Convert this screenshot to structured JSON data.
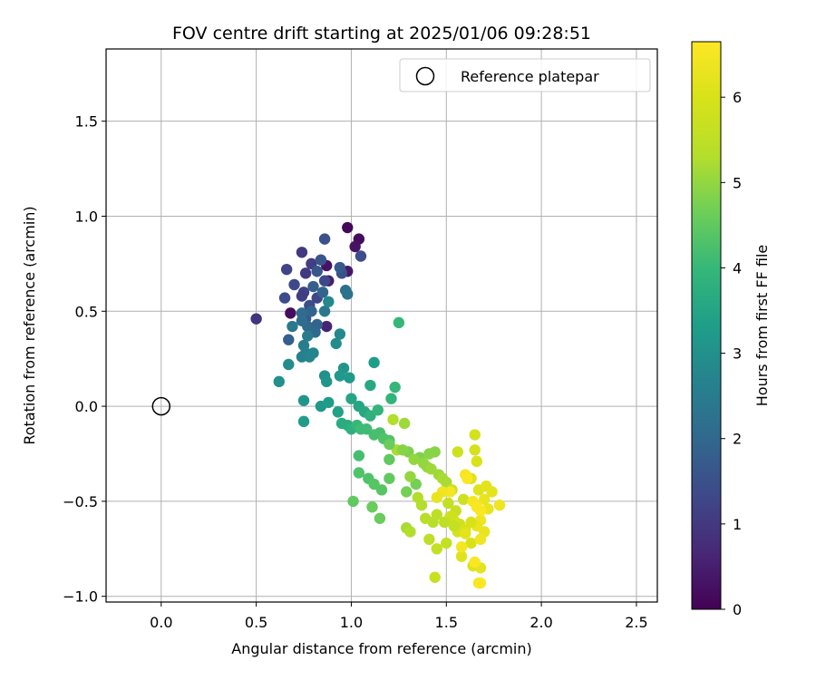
{
  "chart_data": {
    "type": "scatter",
    "title": "FOV centre drift starting at 2025/01/06 09:28:51",
    "xlabel": "Angular distance from reference (arcmin)",
    "ylabel": "Rotation from reference (arcmin)",
    "xlim": [
      -0.29,
      2.61
    ],
    "ylim": [
      -1.03,
      1.88
    ],
    "xticks": [
      "0.0",
      "0.5",
      "1.0",
      "1.5",
      "2.0",
      "2.5"
    ],
    "yticks": [
      "−1.0",
      "−0.5",
      "0.0",
      "0.5",
      "1.0",
      "1.5"
    ],
    "grid": true,
    "legend": {
      "placement": "top-right",
      "entries": [
        "Reference platepar"
      ]
    },
    "reference_point": {
      "x": 0.0,
      "y": 0.0,
      "marker": "open-circle"
    },
    "colorbar": {
      "label": "Hours from first FF file",
      "range": [
        0,
        6.65
      ],
      "ticks": [
        "0",
        "1",
        "2",
        "3",
        "4",
        "5",
        "6"
      ],
      "colormap": "viridis"
    },
    "points": [
      {
        "x": 0.68,
        "y": 0.49,
        "c": 0.2
      },
      {
        "x": 0.98,
        "y": 0.94,
        "c": 0.1
      },
      {
        "x": 1.04,
        "y": 0.88,
        "c": 0.2
      },
      {
        "x": 1.02,
        "y": 0.84,
        "c": 0.3
      },
      {
        "x": 0.98,
        "y": 0.71,
        "c": 0.4
      },
      {
        "x": 0.87,
        "y": 0.74,
        "c": 0.3
      },
      {
        "x": 0.88,
        "y": 0.66,
        "c": 0.5
      },
      {
        "x": 0.87,
        "y": 0.42,
        "c": 0.6
      },
      {
        "x": 0.5,
        "y": 0.46,
        "c": 0.9
      },
      {
        "x": 0.74,
        "y": 0.81,
        "c": 1.0
      },
      {
        "x": 0.79,
        "y": 0.75,
        "c": 1.1
      },
      {
        "x": 0.76,
        "y": 0.7,
        "c": 1.0
      },
      {
        "x": 0.66,
        "y": 0.72,
        "c": 1.2
      },
      {
        "x": 0.7,
        "y": 0.64,
        "c": 1.3
      },
      {
        "x": 0.75,
        "y": 0.6,
        "c": 1.2
      },
      {
        "x": 0.74,
        "y": 0.58,
        "c": 1.1
      },
      {
        "x": 0.78,
        "y": 0.53,
        "c": 1.4
      },
      {
        "x": 0.86,
        "y": 0.88,
        "c": 1.5
      },
      {
        "x": 0.84,
        "y": 0.77,
        "c": 1.6
      },
      {
        "x": 0.82,
        "y": 0.71,
        "c": 1.6
      },
      {
        "x": 0.95,
        "y": 0.7,
        "c": 1.5
      },
      {
        "x": 1.05,
        "y": 0.79,
        "c": 1.4
      },
      {
        "x": 0.94,
        "y": 0.73,
        "c": 1.7
      },
      {
        "x": 0.82,
        "y": 0.57,
        "c": 1.3
      },
      {
        "x": 0.65,
        "y": 0.57,
        "c": 1.4
      },
      {
        "x": 0.86,
        "y": 0.66,
        "c": 1.3
      },
      {
        "x": 0.76,
        "y": 0.46,
        "c": 1.7
      },
      {
        "x": 0.67,
        "y": 0.35,
        "c": 1.8
      },
      {
        "x": 0.79,
        "y": 0.5,
        "c": 1.9
      },
      {
        "x": 0.82,
        "y": 0.43,
        "c": 1.9
      },
      {
        "x": 0.77,
        "y": 0.42,
        "c": 2.0
      },
      {
        "x": 0.81,
        "y": 0.39,
        "c": 2.0
      },
      {
        "x": 0.74,
        "y": 0.49,
        "c": 2.1
      },
      {
        "x": 0.74,
        "y": 0.45,
        "c": 2.1
      },
      {
        "x": 0.8,
        "y": 0.63,
        "c": 1.8
      },
      {
        "x": 0.85,
        "y": 0.6,
        "c": 1.9
      },
      {
        "x": 0.97,
        "y": 0.61,
        "c": 2.2
      },
      {
        "x": 0.98,
        "y": 0.59,
        "c": 2.3
      },
      {
        "x": 0.69,
        "y": 0.42,
        "c": 2.4
      },
      {
        "x": 0.86,
        "y": 0.5,
        "c": 2.4
      },
      {
        "x": 0.77,
        "y": 0.37,
        "c": 2.5
      },
      {
        "x": 0.75,
        "y": 0.32,
        "c": 2.5
      },
      {
        "x": 0.76,
        "y": 0.28,
        "c": 2.6
      },
      {
        "x": 0.74,
        "y": 0.26,
        "c": 2.6
      },
      {
        "x": 0.78,
        "y": 0.26,
        "c": 2.7
      },
      {
        "x": 0.8,
        "y": 0.28,
        "c": 2.7
      },
      {
        "x": 0.88,
        "y": 0.55,
        "c": 2.8
      },
      {
        "x": 0.94,
        "y": 0.38,
        "c": 2.8
      },
      {
        "x": 0.92,
        "y": 0.33,
        "c": 2.9
      },
      {
        "x": 0.67,
        "y": 0.22,
        "c": 2.9
      },
      {
        "x": 0.62,
        "y": 0.13,
        "c": 3.0
      },
      {
        "x": 0.86,
        "y": 0.16,
        "c": 3.0
      },
      {
        "x": 0.87,
        "y": 0.13,
        "c": 3.1
      },
      {
        "x": 0.96,
        "y": 0.2,
        "c": 3.1
      },
      {
        "x": 0.94,
        "y": 0.16,
        "c": 3.2
      },
      {
        "x": 0.99,
        "y": 0.15,
        "c": 3.2
      },
      {
        "x": 1.12,
        "y": 0.23,
        "c": 3.3
      },
      {
        "x": 0.75,
        "y": 0.03,
        "c": 3.1
      },
      {
        "x": 0.84,
        "y": 0.0,
        "c": 3.2
      },
      {
        "x": 0.88,
        "y": 0.02,
        "c": 3.3
      },
      {
        "x": 0.93,
        "y": -0.03,
        "c": 3.4
      },
      {
        "x": 1.0,
        "y": 0.04,
        "c": 3.5
      },
      {
        "x": 1.04,
        "y": 0.0,
        "c": 3.5
      },
      {
        "x": 1.1,
        "y": 0.11,
        "c": 3.6
      },
      {
        "x": 1.07,
        "y": -0.03,
        "c": 3.6
      },
      {
        "x": 0.75,
        "y": -0.08,
        "c": 3.3
      },
      {
        "x": 0.95,
        "y": -0.09,
        "c": 3.7
      },
      {
        "x": 0.98,
        "y": -0.1,
        "c": 3.7
      },
      {
        "x": 1.0,
        "y": -0.12,
        "c": 3.8
      },
      {
        "x": 1.1,
        "y": -0.05,
        "c": 3.8
      },
      {
        "x": 1.14,
        "y": -0.02,
        "c": 3.9
      },
      {
        "x": 1.21,
        "y": 0.04,
        "c": 3.9
      },
      {
        "x": 1.23,
        "y": 0.1,
        "c": 4.0
      },
      {
        "x": 1.25,
        "y": 0.44,
        "c": 4.0
      },
      {
        "x": 1.03,
        "y": -0.1,
        "c": 4.0
      },
      {
        "x": 1.05,
        "y": -0.12,
        "c": 4.1
      },
      {
        "x": 1.08,
        "y": -0.12,
        "c": 4.1
      },
      {
        "x": 1.12,
        "y": -0.15,
        "c": 4.2
      },
      {
        "x": 1.15,
        "y": -0.14,
        "c": 4.2
      },
      {
        "x": 1.17,
        "y": -0.17,
        "c": 4.3
      },
      {
        "x": 1.2,
        "y": -0.18,
        "c": 4.3
      },
      {
        "x": 1.04,
        "y": -0.26,
        "c": 4.2
      },
      {
        "x": 1.04,
        "y": -0.35,
        "c": 4.3
      },
      {
        "x": 1.09,
        "y": -0.38,
        "c": 4.3
      },
      {
        "x": 1.12,
        "y": -0.41,
        "c": 4.4
      },
      {
        "x": 1.16,
        "y": -0.44,
        "c": 4.4
      },
      {
        "x": 1.2,
        "y": -0.38,
        "c": 4.5
      },
      {
        "x": 1.2,
        "y": -0.28,
        "c": 4.5
      },
      {
        "x": 1.01,
        "y": -0.5,
        "c": 4.5
      },
      {
        "x": 1.11,
        "y": -0.53,
        "c": 4.6
      },
      {
        "x": 1.15,
        "y": -0.59,
        "c": 4.6
      },
      {
        "x": 1.29,
        "y": -0.45,
        "c": 4.7
      },
      {
        "x": 1.34,
        "y": -0.41,
        "c": 4.7
      },
      {
        "x": 1.3,
        "y": -0.24,
        "c": 4.8
      },
      {
        "x": 1.36,
        "y": -0.27,
        "c": 4.8
      },
      {
        "x": 1.41,
        "y": -0.25,
        "c": 4.9
      },
      {
        "x": 1.44,
        "y": -0.24,
        "c": 4.9
      },
      {
        "x": 1.31,
        "y": -0.37,
        "c": 5.0
      },
      {
        "x": 1.38,
        "y": -0.3,
        "c": 5.0
      },
      {
        "x": 1.4,
        "y": -0.32,
        "c": 5.0
      },
      {
        "x": 1.42,
        "y": -0.33,
        "c": 5.1
      },
      {
        "x": 1.46,
        "y": -0.36,
        "c": 5.1
      },
      {
        "x": 1.48,
        "y": -0.38,
        "c": 5.2
      },
      {
        "x": 1.5,
        "y": -0.4,
        "c": 5.2
      },
      {
        "x": 1.28,
        "y": -0.09,
        "c": 5.1
      },
      {
        "x": 1.22,
        "y": -0.07,
        "c": 5.3
      },
      {
        "x": 1.24,
        "y": -0.23,
        "c": 5.2
      },
      {
        "x": 1.35,
        "y": -0.48,
        "c": 5.3
      },
      {
        "x": 1.37,
        "y": -0.52,
        "c": 5.3
      },
      {
        "x": 1.39,
        "y": -0.59,
        "c": 5.4
      },
      {
        "x": 1.43,
        "y": -0.61,
        "c": 5.4
      },
      {
        "x": 1.45,
        "y": -0.57,
        "c": 5.5
      },
      {
        "x": 1.41,
        "y": -0.7,
        "c": 5.5
      },
      {
        "x": 1.45,
        "y": -0.75,
        "c": 5.6
      },
      {
        "x": 1.5,
        "y": -0.72,
        "c": 5.6
      },
      {
        "x": 1.44,
        "y": -0.9,
        "c": 5.7
      },
      {
        "x": 1.29,
        "y": -0.64,
        "c": 5.2
      },
      {
        "x": 1.31,
        "y": -0.66,
        "c": 5.3
      },
      {
        "x": 1.51,
        "y": -0.51,
        "c": 5.6
      },
      {
        "x": 1.53,
        "y": -0.44,
        "c": 5.7
      },
      {
        "x": 1.55,
        "y": -0.55,
        "c": 5.7
      },
      {
        "x": 1.57,
        "y": -0.62,
        "c": 5.8
      },
      {
        "x": 1.59,
        "y": -0.49,
        "c": 5.8
      },
      {
        "x": 1.54,
        "y": -0.6,
        "c": 5.9
      },
      {
        "x": 1.56,
        "y": -0.66,
        "c": 5.9
      },
      {
        "x": 1.6,
        "y": -0.65,
        "c": 6.0
      },
      {
        "x": 1.63,
        "y": -0.72,
        "c": 6.0
      },
      {
        "x": 1.58,
        "y": -0.79,
        "c": 6.1
      },
      {
        "x": 1.64,
        "y": -0.84,
        "c": 6.1
      },
      {
        "x": 1.68,
        "y": -0.85,
        "c": 6.2
      },
      {
        "x": 1.56,
        "y": -0.24,
        "c": 5.8
      },
      {
        "x": 1.65,
        "y": -0.15,
        "c": 5.9
      },
      {
        "x": 1.65,
        "y": -0.23,
        "c": 5.9
      },
      {
        "x": 1.66,
        "y": -0.29,
        "c": 6.0
      },
      {
        "x": 1.63,
        "y": -0.38,
        "c": 6.1
      },
      {
        "x": 1.67,
        "y": -0.44,
        "c": 6.1
      },
      {
        "x": 1.71,
        "y": -0.42,
        "c": 6.2
      },
      {
        "x": 1.74,
        "y": -0.45,
        "c": 6.2
      },
      {
        "x": 1.7,
        "y": -0.49,
        "c": 6.3
      },
      {
        "x": 1.72,
        "y": -0.54,
        "c": 6.3
      },
      {
        "x": 1.78,
        "y": -0.52,
        "c": 6.4
      },
      {
        "x": 1.68,
        "y": -0.6,
        "c": 6.4
      },
      {
        "x": 1.7,
        "y": -0.66,
        "c": 6.3
      },
      {
        "x": 1.66,
        "y": -0.63,
        "c": 6.3
      },
      {
        "x": 1.68,
        "y": -0.7,
        "c": 6.4
      },
      {
        "x": 1.6,
        "y": -0.36,
        "c": 6.5
      },
      {
        "x": 1.61,
        "y": -0.38,
        "c": 6.6
      },
      {
        "x": 1.64,
        "y": -0.5,
        "c": 6.5
      },
      {
        "x": 1.66,
        "y": -0.53,
        "c": 6.6
      },
      {
        "x": 1.68,
        "y": -0.55,
        "c": 6.6
      },
      {
        "x": 1.58,
        "y": -0.74,
        "c": 6.5
      },
      {
        "x": 1.65,
        "y": -0.82,
        "c": 6.6
      },
      {
        "x": 1.67,
        "y": -0.93,
        "c": 6.6
      },
      {
        "x": 1.68,
        "y": -0.93,
        "c": 6.6
      },
      {
        "x": 1.52,
        "y": -0.45,
        "c": 6.5
      },
      {
        "x": 1.48,
        "y": -0.45,
        "c": 6.4
      },
      {
        "x": 1.45,
        "y": -0.48,
        "c": 6.3
      },
      {
        "x": 1.6,
        "y": -0.67,
        "c": 6.2
      },
      {
        "x": 1.63,
        "y": -0.61,
        "c": 6.0
      },
      {
        "x": 1.2,
        "y": -0.2,
        "c": 4.6
      },
      {
        "x": 1.27,
        "y": -0.23,
        "c": 4.9
      },
      {
        "x": 1.33,
        "y": -0.28,
        "c": 5.0
      },
      {
        "x": 1.52,
        "y": -0.58,
        "c": 5.8
      },
      {
        "x": 1.54,
        "y": -0.63,
        "c": 5.6
      },
      {
        "x": 1.49,
        "y": -0.61,
        "c": 5.5
      }
    ]
  }
}
